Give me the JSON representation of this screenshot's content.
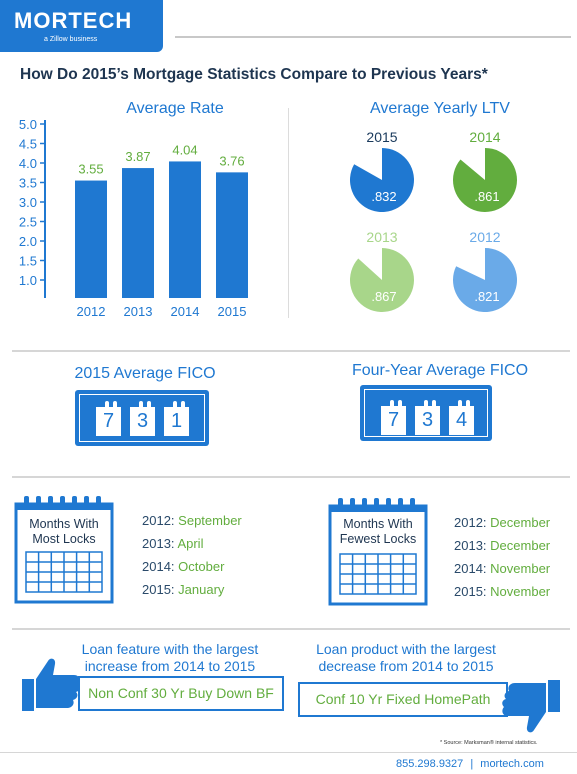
{
  "header": {
    "logo": "MORTECH",
    "logo_sub": "a Zillow business",
    "title": "How Do 2015’s Mortgage Statistics Compare to Previous Years*"
  },
  "avg_rate": {
    "title": "Average Rate",
    "chart_data": {
      "type": "bar",
      "categories": [
        "2012",
        "2013",
        "2014",
        "2015"
      ],
      "values": [
        3.55,
        3.87,
        4.04,
        3.76
      ],
      "ylim": [
        1.0,
        5.0
      ],
      "yticks": [
        "5.0",
        "4.5",
        "4.0",
        "3.5",
        "3.0",
        "2.5",
        "2.0",
        "1.5",
        "1.0"
      ],
      "value_labels": [
        "3.55",
        "3.87",
        "4.04",
        "3.76"
      ],
      "bar_color": "#1f78d1",
      "label_color": "#62ad3e"
    }
  },
  "ltv": {
    "title": "Average Yearly LTV",
    "items": [
      {
        "year": "2015",
        "value": ".832",
        "fraction": 0.832,
        "color": "#1f78d1",
        "year_color": "#1a3a5c"
      },
      {
        "year": "2014",
        "value": ".861",
        "fraction": 0.861,
        "color": "#62ad3e",
        "year_color": "#62ad3e"
      },
      {
        "year": "2013",
        "value": ".867",
        "fraction": 0.867,
        "color": "#a8d68a",
        "year_color": "#a8d68a"
      },
      {
        "year": "2012",
        "value": ".821",
        "fraction": 0.821,
        "color": "#6aaae8",
        "year_color": "#6aaae8"
      }
    ]
  },
  "fico": {
    "left_title": "2015 Average FICO",
    "left_digits": [
      "7",
      "3",
      "1"
    ],
    "right_title": "Four-Year Average FICO",
    "right_digits": [
      "7",
      "3",
      "4"
    ]
  },
  "locks": {
    "most_label": "Months With Most Locks",
    "most_line1": "Months With",
    "most_line2": "Most Locks",
    "most": [
      {
        "year": "2012:",
        "month": "September"
      },
      {
        "year": "2013:",
        "month": "April"
      },
      {
        "year": "2014:",
        "month": "October"
      },
      {
        "year": "2015:",
        "month": "January"
      }
    ],
    "fewest_line1": "Months With",
    "fewest_line2": "Fewest Locks",
    "fewest": [
      {
        "year": "2012:",
        "month": "December"
      },
      {
        "year": "2013:",
        "month": "December"
      },
      {
        "year": "2014:",
        "month": "November"
      },
      {
        "year": "2015:",
        "month": "November"
      }
    ]
  },
  "loans": {
    "increase_head1": "Loan feature with the largest",
    "increase_head2": "increase from 2014 to 2015",
    "increase_value": "Non Conf 30 Yr Buy Down BF",
    "decrease_head1": "Loan product with the largest",
    "decrease_head2": "decrease from 2014 to 2015",
    "decrease_value": "Conf 10 Yr Fixed HomePath"
  },
  "footer": {
    "source": "* Source: Marksman® internal statistics.",
    "phone": "855.298.9327",
    "sep": "|",
    "site": "mortech.com"
  }
}
